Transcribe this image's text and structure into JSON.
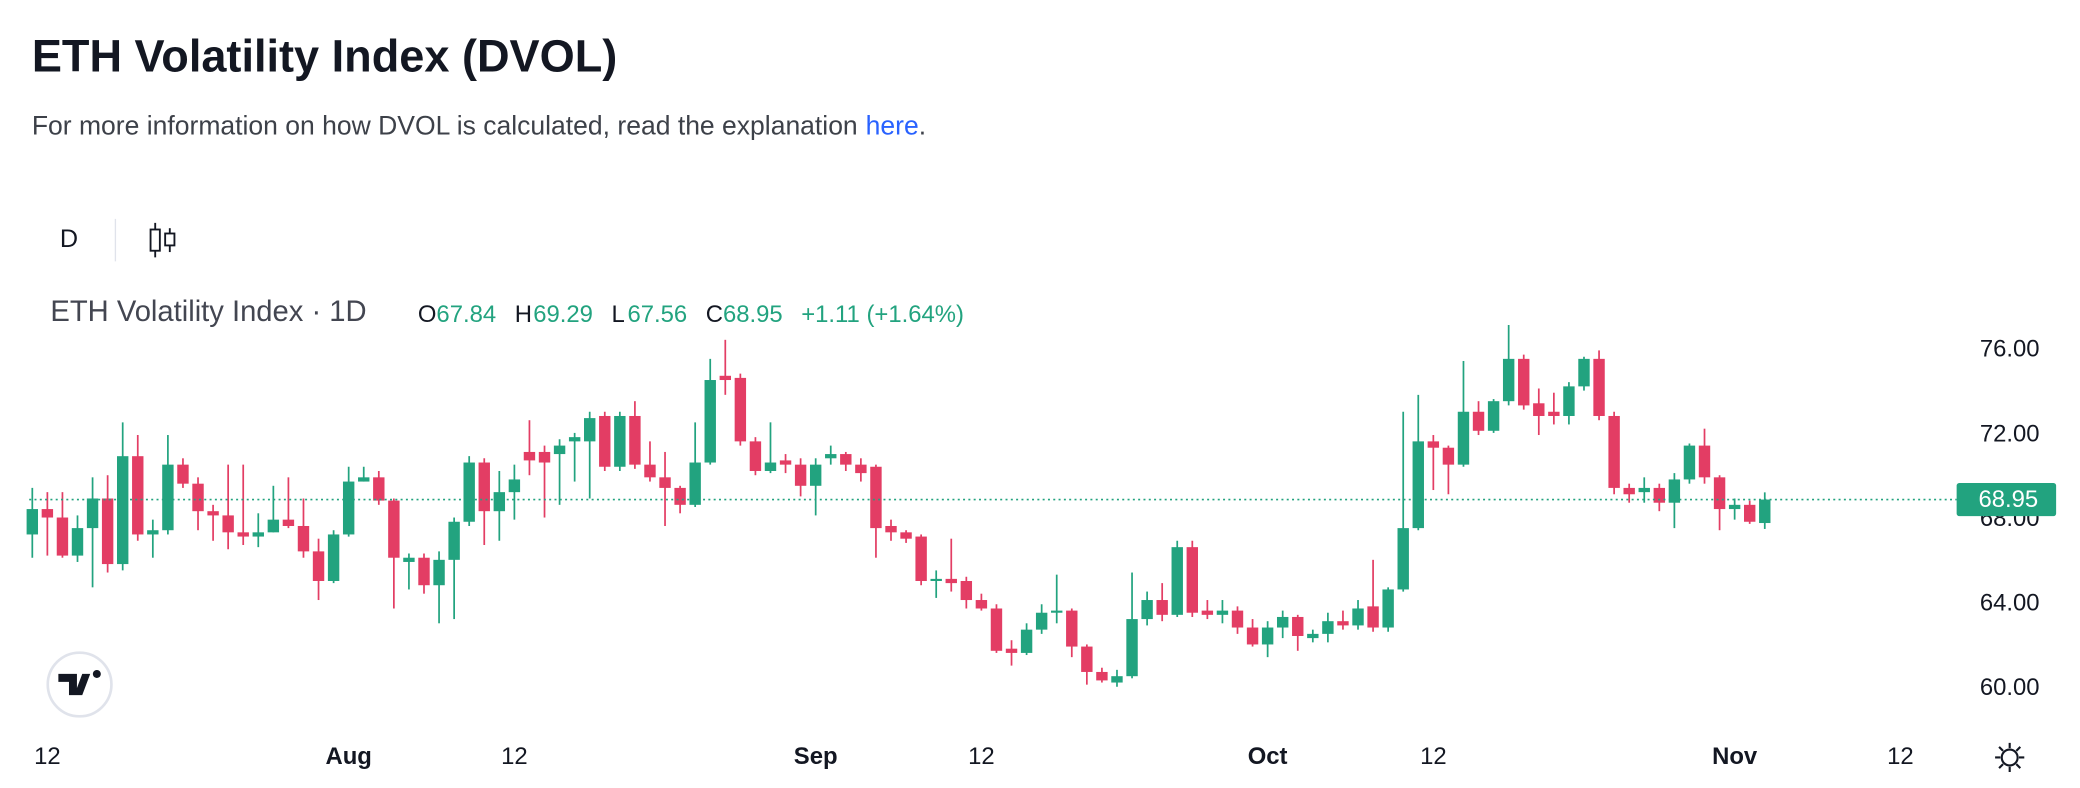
{
  "header": {
    "title": "ETH Volatility Index (DVOL)",
    "subtitle": "For more information on how DVOL is calculated, read the explanation",
    "link": "here",
    "subtitle_end": "."
  },
  "toolbar": {
    "interval": "D"
  },
  "chart_data": {
    "type": "candlestick",
    "legend": {
      "name": "ETH Volatility Index · 1D",
      "keys": [
        "O",
        "H",
        "L",
        "C"
      ],
      "change": "+1.11 (+1.64%)"
    },
    "up_color": "#22a37f",
    "down_color": "#e33d64",
    "x": [
      "Jul 11",
      "Jul 12",
      "Jul 13",
      "Jul 14",
      "Jul 15",
      "Jul 16",
      "Jul 17",
      "Jul 18",
      "Jul 19",
      "Jul 20",
      "Jul 21",
      "Jul 22",
      "Jul 23",
      "Jul 24",
      "Jul 25",
      "Jul 26",
      "Jul 27",
      "Jul 28",
      "Jul 29",
      "Jul 30",
      "Jul 31",
      "Aug 1",
      "Aug 2",
      "Aug 3",
      "Aug 4",
      "Aug 5",
      "Aug 6",
      "Aug 7",
      "Aug 8",
      "Aug 9",
      "Aug 10",
      "Aug 11",
      "Aug 12",
      "Aug 13",
      "Aug 14",
      "Aug 15",
      "Aug 16",
      "Aug 17",
      "Aug 18",
      "Aug 19",
      "Aug 20",
      "Aug 21",
      "Aug 22",
      "Aug 23",
      "Aug 24",
      "Aug 25",
      "Aug 26",
      "Aug 27",
      "Aug 28",
      "Aug 29",
      "Aug 30",
      "Aug 31",
      "Sep 1",
      "Sep 2",
      "Sep 3",
      "Sep 4",
      "Sep 5",
      "Sep 6",
      "Sep 7",
      "Sep 8",
      "Sep 9",
      "Sep 10",
      "Sep 11",
      "Sep 12",
      "Sep 13",
      "Sep 14",
      "Sep 15",
      "Sep 16",
      "Sep 17",
      "Sep 18",
      "Sep 19",
      "Sep 20",
      "Sep 21",
      "Sep 22",
      "Sep 23",
      "Sep 24",
      "Sep 25",
      "Sep 26",
      "Sep 27",
      "Sep 28",
      "Sep 29",
      "Sep 30",
      "Oct 1",
      "Oct 2",
      "Oct 3",
      "Oct 4",
      "Oct 5",
      "Oct 6",
      "Oct 7",
      "Oct 8",
      "Oct 9",
      "Oct 10",
      "Oct 11",
      "Oct 12",
      "Oct 13",
      "Oct 14",
      "Oct 15",
      "Oct 16",
      "Oct 17",
      "Oct 18",
      "Oct 19",
      "Oct 20",
      "Oct 21",
      "Oct 22",
      "Oct 23",
      "Oct 24",
      "Oct 25",
      "Oct 26",
      "Oct 27",
      "Oct 28",
      "Oct 29",
      "Oct 30",
      "Oct 31",
      "Nov 1",
      "Nov 2",
      "Nov 3"
    ],
    "open": [
      67.3,
      68.5,
      68.1,
      66.3,
      67.6,
      69,
      65.9,
      71,
      67.3,
      67.5,
      70.6,
      69.7,
      68.4,
      68.2,
      67.4,
      67.2,
      67.4,
      68,
      67.7,
      66.5,
      65.1,
      67.3,
      69.8,
      70,
      68.9,
      66,
      66.2,
      64.9,
      66.1,
      67.9,
      70.7,
      68.4,
      69.3,
      71.2,
      71.2,
      71.1,
      71.7,
      71.7,
      72.9,
      70.5,
      72.9,
      70.6,
      70,
      69.5,
      68.7,
      70.7,
      74.8,
      74.7,
      71.7,
      70.3,
      70.8,
      70.6,
      69.6,
      70.9,
      71.1,
      70.6,
      70.5,
      67.7,
      67.4,
      67.2,
      65.1,
      65.2,
      65.1,
      64.2,
      63.8,
      61.9,
      61.7,
      62.8,
      63.6,
      63.7,
      62,
      60.8,
      60.3,
      60.6,
      63.3,
      64.2,
      63.5,
      66.7,
      63.7,
      63.5,
      63.7,
      62.9,
      62.1,
      62.9,
      63.4,
      62.4,
      62.6,
      63.2,
      63,
      63.9,
      62.9,
      64.7,
      67.6,
      71.7,
      71.4,
      70.6,
      73.1,
      72.2,
      73.6,
      75.6,
      73.5,
      73.1,
      72.9,
      74.3,
      75.6,
      72.9,
      69.5,
      69.3,
      69.5,
      68.8,
      69.9,
      71.5,
      70,
      68.5,
      68.7,
      67.84
    ],
    "high": [
      69.5,
      69.3,
      69.3,
      68.2,
      70,
      70.1,
      72.6,
      72,
      68,
      72,
      70.9,
      70,
      68.7,
      70.6,
      70.6,
      68.3,
      69.6,
      70,
      69,
      67.1,
      67.5,
      70.5,
      70.5,
      70.3,
      69,
      66.4,
      66.4,
      66.5,
      68.1,
      71,
      70.9,
      70.3,
      70.6,
      72.7,
      71.5,
      71.8,
      72.1,
      73.1,
      73.1,
      73.1,
      73.6,
      71.7,
      71.2,
      69.6,
      72.6,
      75.6,
      76.5,
      74.9,
      71.9,
      72.6,
      71.1,
      70.9,
      70.9,
      71.5,
      71.2,
      70.9,
      70.6,
      68,
      67.5,
      67.3,
      65.6,
      67.1,
      65.3,
      64.5,
      64,
      62.3,
      63.1,
      64,
      65.4,
      63.8,
      62.1,
      61,
      60.9,
      65.5,
      64.6,
      65,
      67,
      67,
      64.2,
      64.2,
      63.9,
      63.3,
      63.2,
      63.7,
      63.5,
      62.8,
      63.6,
      63.7,
      64.2,
      66.1,
      64.8,
      73.1,
      73.9,
      72,
      71.5,
      75.5,
      73.6,
      73.7,
      77.2,
      75.8,
      74.2,
      74,
      74.5,
      75.7,
      76,
      73.1,
      69.7,
      70,
      69.7,
      70.2,
      71.6,
      72.3,
      70.1,
      69,
      68.9,
      69.29
    ],
    "low": [
      66.2,
      66.3,
      66.2,
      66,
      64.8,
      65.5,
      65.6,
      67,
      66.2,
      67.3,
      69.5,
      67.5,
      67,
      66.6,
      66.8,
      66.7,
      67.4,
      67.6,
      66.2,
      64.2,
      65,
      67.2,
      69.8,
      68.7,
      63.8,
      64.7,
      64.5,
      63.1,
      63.3,
      67.7,
      66.8,
      67,
      68,
      70.1,
      68.1,
      68.7,
      69.8,
      69,
      70.3,
      70.3,
      70.4,
      69.8,
      67.7,
      68.3,
      68.6,
      70.6,
      73.9,
      71.5,
      70.1,
      70.2,
      70.2,
      69.1,
      68.2,
      70.6,
      70.3,
      69.8,
      66.2,
      67,
      66.9,
      64.9,
      64.3,
      64.6,
      63.8,
      63.7,
      61.7,
      61.1,
      61.6,
      62.6,
      63.1,
      61.5,
      60.2,
      60.3,
      60.1,
      60.5,
      63,
      63.2,
      63.4,
      63.4,
      63.3,
      63.1,
      62.6,
      62,
      61.5,
      62.4,
      61.8,
      62.2,
      62.2,
      62.8,
      62.8,
      62.7,
      62.7,
      64.6,
      67.5,
      69.4,
      69.2,
      70.5,
      72,
      72.1,
      73.4,
      73.2,
      72,
      72.5,
      72.5,
      74.1,
      72.7,
      69.2,
      68.8,
      68.8,
      68.4,
      67.6,
      69.7,
      69.7,
      67.5,
      68,
      67.8,
      67.56
    ],
    "close": [
      68.5,
      68.1,
      66.3,
      67.6,
      69,
      65.9,
      71,
      67.3,
      67.5,
      70.6,
      69.7,
      68.4,
      68.2,
      67.4,
      67.2,
      67.4,
      68,
      67.7,
      66.5,
      65.1,
      67.3,
      69.8,
      70,
      68.9,
      66.2,
      66.2,
      64.9,
      66.1,
      67.9,
      70.7,
      68.4,
      69.3,
      69.9,
      70.8,
      70.7,
      71.5,
      71.9,
      72.8,
      70.5,
      72.9,
      70.6,
      70,
      69.5,
      68.7,
      70.7,
      74.6,
      74.6,
      71.7,
      70.3,
      70.7,
      70.6,
      69.6,
      70.6,
      71.1,
      70.6,
      70.2,
      67.6,
      67.4,
      67.1,
      65.1,
      65.2,
      65,
      64.2,
      63.8,
      61.8,
      61.7,
      62.8,
      63.6,
      63.7,
      62,
      60.8,
      60.4,
      60.6,
      63.3,
      64.2,
      63.5,
      66.7,
      63.6,
      63.5,
      63.7,
      62.9,
      62.1,
      62.9,
      63.4,
      62.5,
      62.6,
      63.2,
      63,
      63.8,
      62.9,
      64.7,
      67.6,
      71.7,
      71.4,
      70.6,
      73.1,
      72.2,
      73.6,
      75.6,
      73.4,
      72.9,
      72.9,
      74.3,
      75.6,
      72.9,
      69.5,
      69.2,
      69.5,
      68.8,
      69.9,
      71.5,
      70,
      68.5,
      68.7,
      67.9,
      68.95
    ],
    "xlim": [
      "Jul 10",
      "Nov 16"
    ],
    "xticks": [
      {
        "value": "Jul 12",
        "label": "12"
      },
      {
        "value": "Aug 1",
        "label": "Aug"
      },
      {
        "value": "Aug 12",
        "label": "12"
      },
      {
        "value": "Sep 1",
        "label": "Sep"
      },
      {
        "value": "Sep 12",
        "label": "12"
      },
      {
        "value": "Oct 1",
        "label": "Oct"
      },
      {
        "value": "Oct 12",
        "label": "12"
      },
      {
        "value": "Nov 1",
        "label": "Nov"
      },
      {
        "value": "Nov 12",
        "label": "12"
      }
    ],
    "ylim": [
      58.2,
      77.2
    ],
    "yticks": [
      {
        "value": 60,
        "label": "60.00"
      },
      {
        "value": 64,
        "label": "64.00"
      },
      {
        "value": 68,
        "label": "68.00"
      },
      {
        "value": 72,
        "label": "72.00"
      },
      {
        "value": 76,
        "label": "76.00"
      }
    ]
  }
}
